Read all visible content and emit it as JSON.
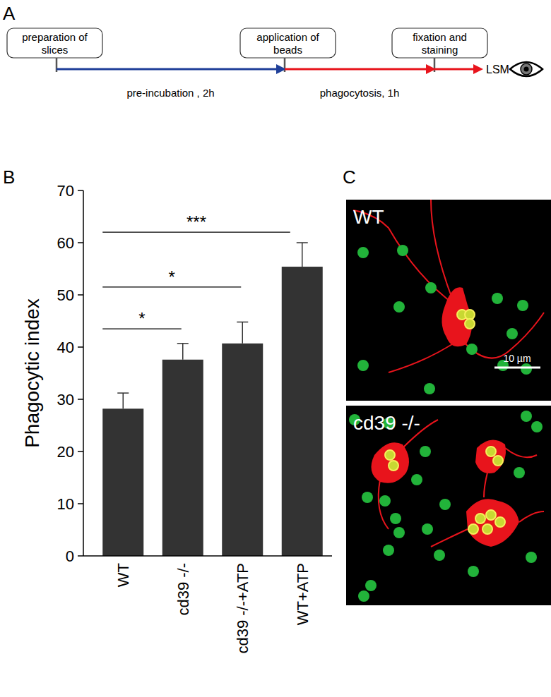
{
  "chart_data": {
    "type": "bar",
    "panel_label": "B",
    "categories": [
      "WT",
      "cd39 -/-",
      "cd39 -/-+ATP",
      "WT+ATP"
    ],
    "values": [
      28.2,
      37.6,
      40.7,
      55.4
    ],
    "errors": [
      3.0,
      3.1,
      4.1,
      4.6
    ],
    "color": "#333333",
    "y_label": "Phagocytic index",
    "ylim": [
      0,
      70
    ],
    "yticks": [
      0,
      10,
      20,
      30,
      40,
      50,
      60,
      70
    ],
    "annotations": [
      {
        "from": 0,
        "to": 1,
        "y": 43.5,
        "label": "*"
      },
      {
        "from": 0,
        "to": 2,
        "y": 51.5,
        "label": "*"
      },
      {
        "from": 0,
        "to": 3,
        "y": 62,
        "label": "***"
      }
    ]
  },
  "diagram": {
    "panel_label": "A",
    "steps": [
      "preparation of slices",
      "application of beads",
      "fixation and staining"
    ],
    "phases": [
      {
        "label": "pre-incubation , 2h",
        "color": "#1f3f99"
      },
      {
        "label": "phagocytosis, 1h",
        "color": "#e8141c"
      }
    ],
    "end_label": "LSM"
  },
  "images": {
    "panel_label": "C",
    "panels": [
      "WT",
      "cd39 -/-"
    ],
    "scale_bar": "10 µm"
  }
}
